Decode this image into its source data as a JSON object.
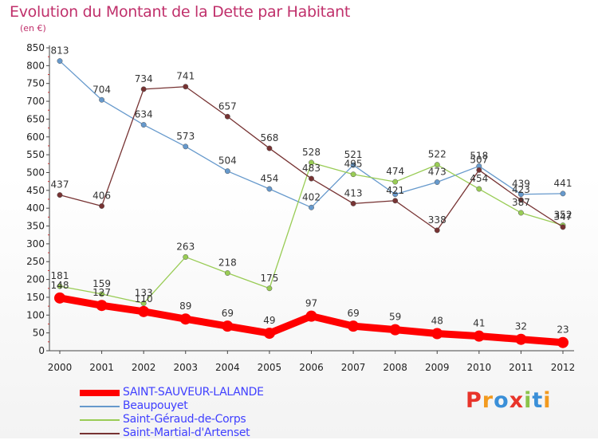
{
  "title": "Evolution du Montant de la Dette par Habitant",
  "unit": "(en €)",
  "brand": "Proxiti",
  "colors": {
    "title": "#c0306b",
    "brand": [
      "#e8342a",
      "#f29a1f",
      "#3a8fd8",
      "#e8342a",
      "#8bc34a",
      "#3a8fd8",
      "#f29a1f"
    ]
  },
  "chart_data": {
    "type": "line",
    "categories": [
      "2000",
      "2001",
      "2002",
      "2003",
      "2004",
      "2005",
      "2006",
      "2007",
      "2008",
      "2009",
      "2010",
      "2011",
      "2012"
    ],
    "ylim": [
      0,
      850
    ],
    "yticks": [
      0,
      50,
      100,
      150,
      200,
      250,
      300,
      350,
      400,
      450,
      500,
      550,
      600,
      650,
      700,
      750,
      800,
      850
    ],
    "grid": false,
    "legend_position": "bottom-left",
    "series": [
      {
        "name": "SAINT-SAUVEUR-LALANDE",
        "color": "#ff0000",
        "values": [
          148,
          127,
          110,
          89,
          69,
          49,
          97,
          69,
          59,
          48,
          41,
          32,
          23
        ],
        "labels": [
          "148",
          "127",
          "110",
          "89",
          "69",
          "49",
          "97",
          "69",
          "59",
          "48",
          "41",
          "32",
          "23"
        ]
      },
      {
        "name": "Beaupouyet",
        "color": "#6699cc",
        "values": [
          813,
          704,
          634,
          573,
          504,
          454,
          402,
          521,
          439,
          473,
          518,
          439,
          441
        ],
        "labels": [
          "813",
          "704",
          "634",
          "573",
          "504",
          "454",
          "402",
          "521",
          "",
          "473",
          "518",
          "439",
          "441"
        ]
      },
      {
        "name": "Saint-Géraud-de-Corps",
        "color": "#99cc55",
        "values": [
          181,
          159,
          133,
          263,
          218,
          175,
          528,
          495,
          474,
          522,
          454,
          387,
          352
        ],
        "labels": [
          "181",
          "159",
          "133",
          "263",
          "218",
          "175",
          "528",
          "495",
          "474",
          "522",
          "454",
          "387",
          "352"
        ]
      },
      {
        "name": "Saint-Martial-d'Artenset",
        "color": "#773333",
        "values": [
          437,
          406,
          734,
          741,
          657,
          568,
          483,
          413,
          421,
          338,
          507,
          423,
          347
        ],
        "labels": [
          "437",
          "406",
          "734",
          "741",
          "657",
          "568",
          "483",
          "413",
          "421",
          "338",
          "507",
          "423",
          "347"
        ]
      }
    ]
  }
}
